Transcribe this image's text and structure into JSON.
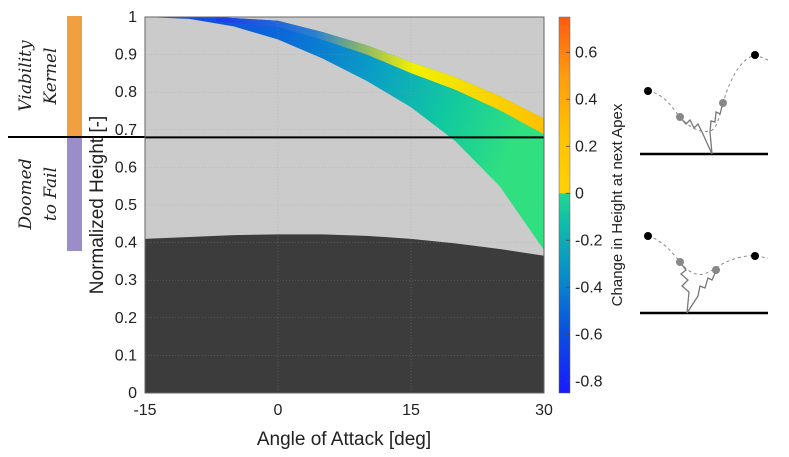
{
  "chart_data": {
    "type": "heatmap",
    "xlabel": "Angle of Attack [deg]",
    "ylabel": "Normalized Height [-]",
    "xlim": [
      -15,
      30
    ],
    "ylim": [
      0,
      1
    ],
    "xticks": [
      "-15",
      "0",
      "15",
      "30"
    ],
    "yticks": [
      "0",
      "0.1",
      "0.2",
      "0.3",
      "0.4",
      "0.5",
      "0.6",
      "0.7",
      "0.8",
      "0.9",
      "1"
    ],
    "colorbar": {
      "label": "Change in Height at next Apex",
      "range": [
        -0.85,
        0.75
      ],
      "ticks": [
        "-0.8",
        "-0.6",
        "-0.4",
        "-0.2",
        "0",
        "0.2",
        "0.4",
        "0.6"
      ]
    },
    "grid": true,
    "threshold_height": 0.68,
    "regions": {
      "failure_boundary": {
        "x": [
          -15,
          -10,
          -5,
          0,
          5,
          10,
          15,
          20,
          25,
          30
        ],
        "y": [
          0.41,
          0.415,
          0.42,
          0.422,
          0.422,
          0.418,
          0.41,
          0.398,
          0.383,
          0.365
        ]
      },
      "viable_band_upper": {
        "x": [
          -7,
          0,
          5,
          10,
          15,
          20,
          25,
          30
        ],
        "y": [
          1.0,
          0.99,
          0.96,
          0.925,
          0.88,
          0.84,
          0.79,
          0.73
        ]
      },
      "viable_band_lower": {
        "x": [
          -15,
          -10,
          -5,
          0,
          5,
          10,
          15,
          20,
          25,
          30
        ],
        "y": [
          1.0,
          0.995,
          0.975,
          0.94,
          0.89,
          0.83,
          0.76,
          0.67,
          0.55,
          0.38
        ]
      }
    },
    "side_labels": [
      {
        "line1": "Viability",
        "line2": "Kernel",
        "color": "#f0a040"
      },
      {
        "line1": "Doomed",
        "line2": "to Fail",
        "color": "#9b8ec8"
      }
    ]
  }
}
